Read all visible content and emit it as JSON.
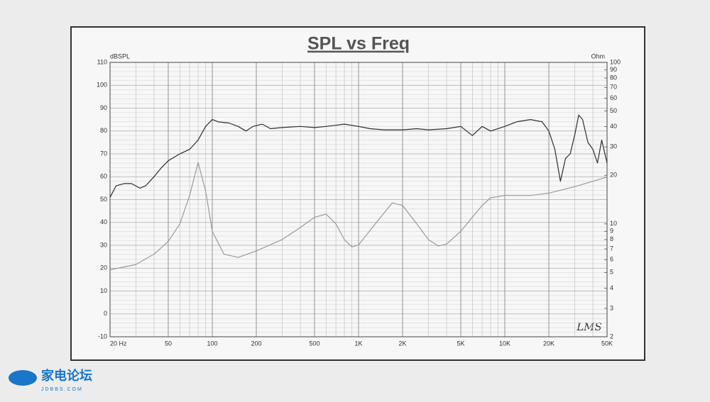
{
  "chart_data": {
    "type": "line",
    "title": "SPL vs Freq",
    "ylabel": "dBSPL",
    "y2label": "Ohm",
    "annotation": "LMS",
    "xscale": "log",
    "y2scale": "log",
    "grid": true,
    "xlim": [
      20,
      50000
    ],
    "ylim": [
      -10,
      110
    ],
    "y2lim": [
      2,
      100
    ],
    "xticks": [
      {
        "value": 20,
        "label": "20  Hz"
      },
      50,
      100,
      200,
      500,
      {
        "value": 1000,
        "label": "1K"
      },
      {
        "value": 2000,
        "label": "2K"
      },
      {
        "value": 5000,
        "label": "5K"
      },
      {
        "value": 10000,
        "label": "10K"
      },
      {
        "value": 20000,
        "label": "20K"
      },
      {
        "value": 50000,
        "label": "50K"
      }
    ],
    "xminorticks": [
      30,
      40,
      60,
      70,
      80,
      90,
      300,
      400,
      600,
      700,
      800,
      900,
      3000,
      4000,
      6000,
      7000,
      8000,
      9000,
      30000,
      40000
    ],
    "yticks": [
      -10,
      0,
      10,
      20,
      30,
      40,
      50,
      60,
      70,
      80,
      90,
      100,
      110
    ],
    "yminorticks": [
      -8,
      -6,
      -4,
      -2,
      2,
      4,
      6,
      8,
      12,
      14,
      16,
      18,
      22,
      24,
      26,
      28,
      32,
      34,
      36,
      38,
      42,
      44,
      46,
      48,
      52,
      54,
      56,
      58,
      62,
      64,
      66,
      68,
      72,
      74,
      76,
      78,
      82,
      84,
      86,
      88,
      92,
      94,
      96,
      98,
      102,
      104,
      106,
      108
    ],
    "y2ticks": [
      2,
      3,
      4,
      5,
      6,
      7,
      8,
      9,
      10,
      20,
      30,
      40,
      50,
      60,
      70,
      80,
      90,
      100
    ],
    "series": [
      {
        "color": "#2e2e2e",
        "axis": "y",
        "x": [
          20,
          22,
          25,
          28,
          32,
          35,
          40,
          45,
          50,
          60,
          70,
          80,
          90,
          100,
          110,
          130,
          150,
          170,
          190,
          220,
          250,
          300,
          400,
          500,
          600,
          700,
          800,
          1000,
          1200,
          1500,
          2000,
          2500,
          3000,
          4000,
          5000,
          6000,
          7000,
          8000,
          10000,
          12000,
          15000,
          18000,
          20000,
          22000,
          24000,
          26000,
          28000,
          30000,
          32000,
          34000,
          37000,
          40000,
          43000,
          46000,
          50000
        ],
        "values": [
          51,
          56,
          57,
          57,
          55,
          56,
          60,
          64,
          67,
          70,
          72,
          76,
          82,
          85,
          84,
          83.5,
          82,
          80,
          82,
          83,
          81,
          81.5,
          82,
          81.5,
          82,
          82.5,
          83,
          82,
          81,
          80.5,
          80.5,
          81,
          80.5,
          81,
          82,
          78,
          82,
          80,
          82,
          84,
          85,
          84,
          80,
          72,
          58,
          68,
          70,
          78,
          87,
          85,
          75,
          72,
          66,
          76,
          66
        ]
      },
      {
        "color": "#9a9a9a",
        "axis": "y2",
        "x": [
          20,
          30,
          40,
          50,
          60,
          70,
          80,
          90,
          100,
          120,
          150,
          200,
          300,
          400,
          500,
          600,
          700,
          800,
          900,
          1000,
          1300,
          1700,
          2000,
          2500,
          3000,
          3500,
          4000,
          5000,
          6000,
          7000,
          8000,
          10000,
          15000,
          20000,
          30000,
          50000
        ],
        "values": [
          5.2,
          5.6,
          6.5,
          7.8,
          10,
          15,
          24,
          16,
          9,
          6.5,
          6.2,
          6.8,
          8,
          9.5,
          11,
          11.5,
          10,
          8,
          7.2,
          7.4,
          10,
          13.5,
          13,
          10,
          8,
          7.3,
          7.5,
          9,
          11,
          13,
          14.5,
          15,
          15,
          15.5,
          17,
          19.5
        ]
      }
    ]
  },
  "watermark": {
    "name": "家电论坛",
    "site": "JDBBS.COM"
  }
}
